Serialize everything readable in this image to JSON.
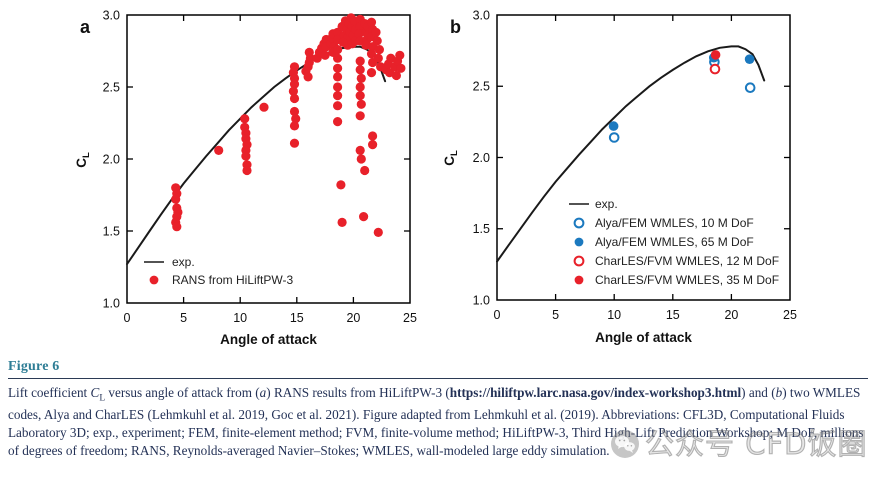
{
  "colors": {
    "red": "#e8212a",
    "blue": "#1b79bf",
    "curve": "#1a1a1a",
    "axis": "#000000",
    "caption_heading": "#2e7d95",
    "caption_text": "#233156"
  },
  "watermark": {
    "icon": "wechat-icon",
    "text": "公众号 CFD饭圈"
  },
  "caption": {
    "label": "Figure 6",
    "segments": {
      "s1": "Lift coefficient ",
      "cl_main": "C",
      "cl_sub": "L",
      "s2": " versus angle of attack from (",
      "a_ital": "a",
      "s3": ") RANS results from HiLiftPW-3 (",
      "url": "https://hiliftpw.larc.nasa.gov/index-workshop3.html",
      "s4": ") and (",
      "b_ital": "b",
      "s5": ") two WMLES codes, Alya and CharLES (Lehmkuhl et al. 2019, Goc et al. 2021). Figure adapted from Lehmkuhl et al. (2019). Abbreviations: CFL3D, Computational Fluids Laboratory 3D; exp., experiment; FEM, finite-element method; FVM, finite-volume method; HiLiftPW-3, Third High-Lift Prediction Workshop; M DoF, millions of degrees of freedom; RANS, Reynolds-averaged Navier–Stokes; WMLES, wall-modeled large eddy simulation."
    }
  },
  "chart_data": [
    {
      "id": "a",
      "type": "scatter",
      "panel_label": "a",
      "xlabel": "Angle of attack",
      "ylabel_main": "C",
      "ylabel_sub": "L",
      "xlim": [
        0,
        25
      ],
      "ylim": [
        1.0,
        3.0
      ],
      "xticks": [
        0,
        5,
        10,
        15,
        20,
        25
      ],
      "xtick_labels": [
        "0",
        "5",
        "10",
        "15",
        "20",
        "25"
      ],
      "yticks": [
        1.0,
        1.5,
        2.0,
        2.5,
        3.0
      ],
      "ytick_labels": [
        "1.0",
        "1.5",
        "2.0",
        "2.5",
        "3.0"
      ],
      "grid": false,
      "legend_position": "lower-left-inside",
      "legend": [
        {
          "symbol": "line",
          "color": "curve",
          "label": "exp."
        },
        {
          "symbol": "filled",
          "color": "red",
          "label": "RANS from HiLiftPW-3"
        }
      ],
      "curve": {
        "name": "exp.",
        "points": [
          [
            0,
            1.27
          ],
          [
            1,
            1.385
          ],
          [
            2,
            1.5
          ],
          [
            3,
            1.615
          ],
          [
            4,
            1.725
          ],
          [
            5,
            1.83
          ],
          [
            6,
            1.925
          ],
          [
            7,
            2.02
          ],
          [
            8,
            2.11
          ],
          [
            9,
            2.2
          ],
          [
            10,
            2.28
          ],
          [
            11,
            2.36
          ],
          [
            12,
            2.43
          ],
          [
            13,
            2.5
          ],
          [
            14,
            2.56
          ],
          [
            15,
            2.615
          ],
          [
            16,
            2.665
          ],
          [
            17,
            2.71
          ],
          [
            18,
            2.745
          ],
          [
            19,
            2.77
          ],
          [
            20,
            2.78
          ],
          [
            20.6,
            2.78
          ],
          [
            21.2,
            2.76
          ],
          [
            21.8,
            2.725
          ],
          [
            22.3,
            2.65
          ],
          [
            22.8,
            2.54
          ]
        ]
      },
      "series": [
        {
          "name": "RANS from HiLiftPW-3",
          "marker": "filled",
          "color": "red",
          "r": 4.6,
          "points": [
            [
              4.3,
              1.8
            ],
            [
              4.4,
              1.76
            ],
            [
              4.3,
              1.72
            ],
            [
              4.4,
              1.66
            ],
            [
              4.5,
              1.63
            ],
            [
              4.4,
              1.6
            ],
            [
              4.3,
              1.56
            ],
            [
              4.4,
              1.53
            ],
            [
              8.1,
              2.06
            ],
            [
              10.4,
              2.28
            ],
            [
              10.4,
              2.22
            ],
            [
              10.5,
              2.18
            ],
            [
              10.5,
              2.14
            ],
            [
              10.6,
              2.1
            ],
            [
              10.5,
              2.06
            ],
            [
              10.5,
              2.02
            ],
            [
              10.6,
              1.96
            ],
            [
              10.6,
              1.92
            ],
            [
              12.1,
              2.36
            ],
            [
              14.8,
              2.64
            ],
            [
              14.7,
              2.6
            ],
            [
              14.8,
              2.56
            ],
            [
              14.8,
              2.52
            ],
            [
              14.7,
              2.47
            ],
            [
              14.8,
              2.42
            ],
            [
              14.8,
              2.33
            ],
            [
              14.9,
              2.28
            ],
            [
              14.8,
              2.23
            ],
            [
              14.8,
              2.11
            ],
            [
              15.8,
              2.61
            ],
            [
              16.0,
              2.64
            ],
            [
              16.1,
              2.67
            ],
            [
              16.2,
              2.7
            ],
            [
              16.0,
              2.57
            ],
            [
              16.1,
              2.74
            ],
            [
              16.8,
              2.7
            ],
            [
              17.0,
              2.74
            ],
            [
              17.2,
              2.77
            ],
            [
              17.4,
              2.8
            ],
            [
              17.5,
              2.72
            ],
            [
              17.6,
              2.83
            ],
            [
              17.6,
              2.78
            ],
            [
              18.0,
              2.8
            ],
            [
              18.1,
              2.84
            ],
            [
              18.2,
              2.87
            ],
            [
              18.3,
              2.78
            ],
            [
              18.2,
              2.74
            ],
            [
              18.6,
              2.88
            ],
            [
              18.6,
              2.83
            ],
            [
              18.6,
              2.76
            ],
            [
              18.6,
              2.7
            ],
            [
              18.6,
              2.63
            ],
            [
              18.6,
              2.57
            ],
            [
              18.6,
              2.5
            ],
            [
              18.6,
              2.44
            ],
            [
              18.6,
              2.37
            ],
            [
              18.6,
              2.26
            ],
            [
              18.9,
              1.82
            ],
            [
              19.0,
              1.56
            ],
            [
              19.0,
              2.92
            ],
            [
              19.2,
              2.86
            ],
            [
              19.3,
              2.96
            ],
            [
              19.4,
              2.9
            ],
            [
              19.5,
              2.84
            ],
            [
              19.6,
              2.94
            ],
            [
              19.7,
              2.88
            ],
            [
              19.8,
              2.98
            ],
            [
              19.9,
              2.92
            ],
            [
              20.0,
              2.86
            ],
            [
              20.1,
              2.96
            ],
            [
              20.2,
              2.9
            ],
            [
              19.5,
              2.79
            ],
            [
              19.9,
              2.8
            ],
            [
              20.2,
              2.82
            ],
            [
              19.1,
              2.81
            ],
            [
              20.6,
              2.97
            ],
            [
              20.6,
              2.92
            ],
            [
              20.5,
              2.87
            ],
            [
              20.6,
              2.82
            ],
            [
              20.6,
              2.68
            ],
            [
              20.6,
              2.62
            ],
            [
              20.7,
              2.56
            ],
            [
              20.6,
              2.5
            ],
            [
              20.6,
              2.44
            ],
            [
              20.7,
              2.38
            ],
            [
              20.6,
              2.3
            ],
            [
              20.6,
              2.06
            ],
            [
              20.7,
              2.0
            ],
            [
              21.0,
              1.92
            ],
            [
              20.9,
              1.6
            ],
            [
              21.0,
              2.94
            ],
            [
              21.1,
              2.88
            ],
            [
              21.2,
              2.83
            ],
            [
              21.3,
              2.92
            ],
            [
              21.1,
              2.79
            ],
            [
              21.3,
              2.86
            ],
            [
              21.6,
              2.95
            ],
            [
              21.7,
              2.9
            ],
            [
              21.6,
              2.85
            ],
            [
              21.7,
              2.78
            ],
            [
              21.6,
              2.73
            ],
            [
              21.7,
              2.67
            ],
            [
              21.6,
              2.6
            ],
            [
              21.7,
              2.16
            ],
            [
              21.7,
              2.1
            ],
            [
              22.2,
              1.49
            ],
            [
              22.0,
              2.88
            ],
            [
              22.1,
              2.82
            ],
            [
              22.3,
              2.76
            ],
            [
              22.2,
              2.7
            ],
            [
              22.4,
              2.64
            ],
            [
              22.9,
              2.62
            ],
            [
              23.1,
              2.66
            ],
            [
              23.3,
              2.7
            ],
            [
              23.2,
              2.6
            ],
            [
              23.7,
              2.64
            ],
            [
              23.9,
              2.68
            ],
            [
              24.1,
              2.72
            ],
            [
              24.2,
              2.63
            ],
            [
              23.8,
              2.58
            ]
          ]
        }
      ]
    },
    {
      "id": "b",
      "type": "scatter",
      "panel_label": "b",
      "xlabel": "Angle of attack",
      "ylabel_main": "C",
      "ylabel_sub": "L",
      "xlim": [
        0,
        25
      ],
      "ylim": [
        1.0,
        3.0
      ],
      "xticks": [
        0,
        5,
        10,
        15,
        20,
        25
      ],
      "xtick_labels": [
        "0",
        "5",
        "10",
        "15",
        "20",
        "25"
      ],
      "yticks": [
        1.0,
        1.5,
        2.0,
        2.5,
        3.0
      ],
      "ytick_labels": [
        "1.0",
        "1.5",
        "2.0",
        "2.5",
        "3.0"
      ],
      "grid": false,
      "legend_position": "lower-right-inside",
      "legend": [
        {
          "symbol": "line",
          "color": "curve",
          "label": "exp."
        },
        {
          "symbol": "open",
          "color": "blue",
          "label": "Alya/FEM WMLES, 10 M DoF"
        },
        {
          "symbol": "filled",
          "color": "blue",
          "label": "Alya/FEM WMLES, 65 M DoF"
        },
        {
          "symbol": "open",
          "color": "red",
          "label": "CharLES/FVM WMLES, 12 M DoF"
        },
        {
          "symbol": "filled",
          "color": "red",
          "label": "CharLES/FVM WMLES, 35 M DoF"
        }
      ],
      "curve": {
        "name": "exp.",
        "points": [
          [
            0,
            1.27
          ],
          [
            1,
            1.385
          ],
          [
            2,
            1.5
          ],
          [
            3,
            1.615
          ],
          [
            4,
            1.725
          ],
          [
            5,
            1.83
          ],
          [
            6,
            1.925
          ],
          [
            7,
            2.02
          ],
          [
            8,
            2.11
          ],
          [
            9,
            2.2
          ],
          [
            10,
            2.28
          ],
          [
            11,
            2.36
          ],
          [
            12,
            2.43
          ],
          [
            13,
            2.5
          ],
          [
            14,
            2.56
          ],
          [
            15,
            2.615
          ],
          [
            16,
            2.665
          ],
          [
            17,
            2.71
          ],
          [
            18,
            2.745
          ],
          [
            19,
            2.77
          ],
          [
            20,
            2.78
          ],
          [
            20.6,
            2.78
          ],
          [
            21.2,
            2.76
          ],
          [
            21.8,
            2.725
          ],
          [
            22.3,
            2.65
          ],
          [
            22.8,
            2.54
          ]
        ]
      },
      "series": [
        {
          "name": "Alya/FEM WMLES, 10 M DoF",
          "marker": "open",
          "color": "blue",
          "r": 4.3,
          "points": [
            [
              10,
              2.14
            ],
            [
              18.55,
              2.67
            ],
            [
              21.6,
              2.49
            ]
          ]
        },
        {
          "name": "Alya/FEM WMLES, 65 M DoF",
          "marker": "filled",
          "color": "blue",
          "r": 4.8,
          "points": [
            [
              9.95,
              2.22
            ],
            [
              18.5,
              2.7
            ],
            [
              21.55,
              2.69
            ]
          ]
        },
        {
          "name": "CharLES/FVM WMLES, 12 M DoF",
          "marker": "open",
          "color": "red",
          "r": 4.3,
          "points": [
            [
              18.6,
              2.62
            ]
          ]
        },
        {
          "name": "CharLES/FVM WMLES, 35 M DoF",
          "marker": "filled",
          "color": "red",
          "r": 4.8,
          "points": [
            [
              18.65,
              2.72
            ]
          ]
        }
      ]
    }
  ]
}
